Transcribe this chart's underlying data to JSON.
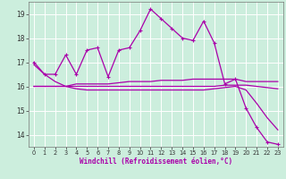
{
  "xlabel": "Windchill (Refroidissement éolien,°C)",
  "background_color": "#cceedd",
  "grid_color": "#ffffff",
  "line_color": "#aa00aa",
  "x": [
    0,
    1,
    2,
    3,
    4,
    5,
    6,
    7,
    8,
    9,
    10,
    11,
    12,
    13,
    14,
    15,
    16,
    17,
    18,
    19,
    20,
    21,
    22,
    23
  ],
  "y_main": [
    17.0,
    16.5,
    16.5,
    17.3,
    16.5,
    17.5,
    17.6,
    16.4,
    17.5,
    17.6,
    18.3,
    19.2,
    18.8,
    18.4,
    18.0,
    17.9,
    18.7,
    17.8,
    16.1,
    16.3,
    15.1,
    14.3,
    13.7,
    13.6
  ],
  "y_line2": [
    16.0,
    16.0,
    16.0,
    16.0,
    16.1,
    16.1,
    16.1,
    16.1,
    16.15,
    16.2,
    16.2,
    16.2,
    16.25,
    16.25,
    16.25,
    16.3,
    16.3,
    16.3,
    16.3,
    16.3,
    16.2,
    16.2,
    16.2,
    16.2
  ],
  "y_line3": [
    16.0,
    16.0,
    16.0,
    16.0,
    16.0,
    16.0,
    16.0,
    16.0,
    16.0,
    16.0,
    16.0,
    16.0,
    16.0,
    16.0,
    16.0,
    16.0,
    16.0,
    16.0,
    16.05,
    16.05,
    16.05,
    16.0,
    15.95,
    15.9
  ],
  "y_line4": [
    16.9,
    16.5,
    16.2,
    16.0,
    15.9,
    15.85,
    15.85,
    15.85,
    15.85,
    15.85,
    15.85,
    15.85,
    15.85,
    15.85,
    15.85,
    15.85,
    15.85,
    15.9,
    15.95,
    16.0,
    15.85,
    15.3,
    14.7,
    14.2
  ],
  "ylim": [
    13.5,
    19.5
  ],
  "yticks": [
    14,
    15,
    16,
    17,
    18,
    19
  ],
  "xlim": [
    -0.5,
    23.5
  ]
}
